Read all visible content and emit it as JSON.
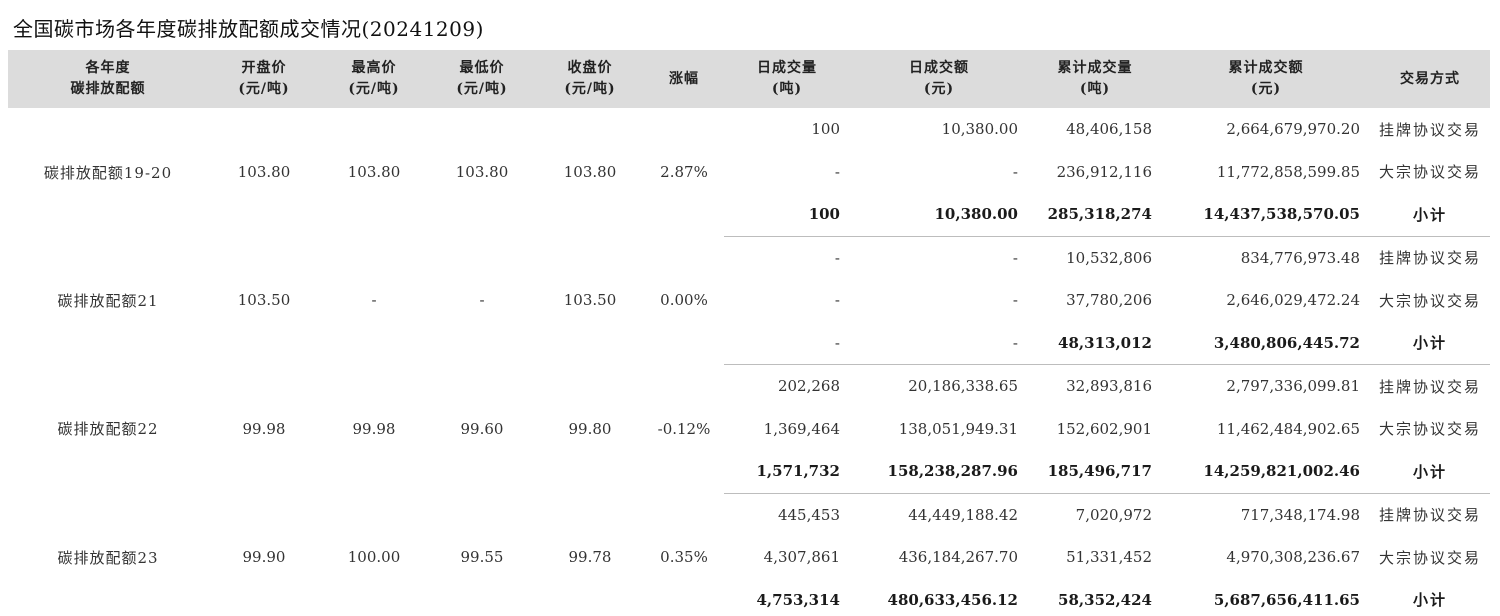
{
  "title": "全国碳市场各年度碳排放配额成交情况(20241209)",
  "headers": [
    {
      "line1": "各年度",
      "line2": "碳排放配额"
    },
    {
      "line1": "开盘价",
      "line2": "(元/吨)"
    },
    {
      "line1": "最高价",
      "line2": "(元/吨)"
    },
    {
      "line1": "最低价",
      "line2": "(元/吨)"
    },
    {
      "line1": "收盘价",
      "line2": "(元/吨)"
    },
    {
      "line1": "涨幅",
      "line2": ""
    },
    {
      "line1": "日成交量",
      "line2": "(吨)"
    },
    {
      "line1": "日成交额",
      "line2": "(元)"
    },
    {
      "line1": "累计成交量",
      "line2": "(吨)"
    },
    {
      "line1": "累计成交额",
      "line2": "(元)"
    },
    {
      "line1": "交易方式",
      "line2": ""
    }
  ],
  "groups": [
    {
      "name": "碳排放配额19-20",
      "open": "103.80",
      "high": "103.80",
      "low": "103.80",
      "close": "103.80",
      "change": "2.87%",
      "rows": [
        {
          "day_vol": "100",
          "day_amt": "10,380.00",
          "cum_vol": "48,406,158",
          "cum_amt": "2,664,679,970.20",
          "method": "挂牌协议交易"
        },
        {
          "day_vol": "-",
          "day_amt": "-",
          "cum_vol": "236,912,116",
          "cum_amt": "11,772,858,599.85",
          "method": "大宗协议交易"
        },
        {
          "day_vol": "100",
          "day_amt": "10,380.00",
          "cum_vol": "285,318,274",
          "cum_amt": "14,437,538,570.05",
          "method": "小计"
        }
      ]
    },
    {
      "name": "碳排放配额21",
      "open": "103.50",
      "high": "-",
      "low": "-",
      "close": "103.50",
      "change": "0.00%",
      "rows": [
        {
          "day_vol": "-",
          "day_amt": "-",
          "cum_vol": "10,532,806",
          "cum_amt": "834,776,973.48",
          "method": "挂牌协议交易"
        },
        {
          "day_vol": "-",
          "day_amt": "-",
          "cum_vol": "37,780,206",
          "cum_amt": "2,646,029,472.24",
          "method": "大宗协议交易"
        },
        {
          "day_vol": "-",
          "day_amt": "-",
          "cum_vol": "48,313,012",
          "cum_amt": "3,480,806,445.72",
          "method": "小计"
        }
      ]
    },
    {
      "name": "碳排放配额22",
      "open": "99.98",
      "high": "99.98",
      "low": "99.60",
      "close": "99.80",
      "change": "-0.12%",
      "rows": [
        {
          "day_vol": "202,268",
          "day_amt": "20,186,338.65",
          "cum_vol": "32,893,816",
          "cum_amt": "2,797,336,099.81",
          "method": "挂牌协议交易"
        },
        {
          "day_vol": "1,369,464",
          "day_amt": "138,051,949.31",
          "cum_vol": "152,602,901",
          "cum_amt": "11,462,484,902.65",
          "method": "大宗协议交易"
        },
        {
          "day_vol": "1,571,732",
          "day_amt": "158,238,287.96",
          "cum_vol": "185,496,717",
          "cum_amt": "14,259,821,002.46",
          "method": "小计"
        }
      ]
    },
    {
      "name": "碳排放配额23",
      "open": "99.90",
      "high": "100.00",
      "low": "99.55",
      "close": "99.78",
      "change": "0.35%",
      "rows": [
        {
          "day_vol": "445,453",
          "day_amt": "44,449,188.42",
          "cum_vol": "7,020,972",
          "cum_amt": "717,348,174.98",
          "method": "挂牌协议交易"
        },
        {
          "day_vol": "4,307,861",
          "day_amt": "436,184,267.70",
          "cum_vol": "51,331,452",
          "cum_amt": "4,970,308,236.67",
          "method": "大宗协议交易"
        },
        {
          "day_vol": "4,753,314",
          "day_amt": "480,633,456.12",
          "cum_vol": "58,352,424",
          "cum_amt": "5,687,656,411.65",
          "method": "小计"
        }
      ]
    }
  ]
}
